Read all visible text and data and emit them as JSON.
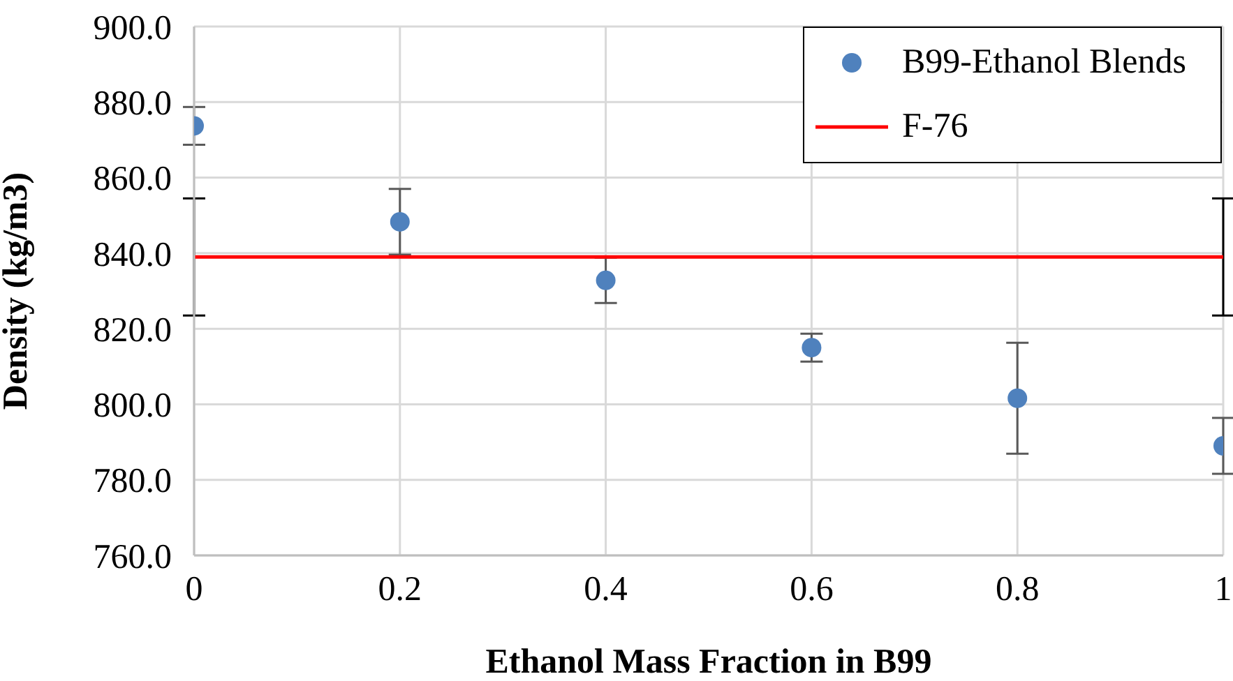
{
  "chart_data": {
    "type": "scatter",
    "xlabel": "Ethanol Mass Fraction in B99",
    "ylabel": "Density (kg/m3)",
    "xlim": [
      0,
      1
    ],
    "xticks": [
      0,
      0.2,
      0.4,
      0.6,
      0.8,
      1
    ],
    "ylim": [
      760,
      900
    ],
    "yticks": [
      {
        "value": 760,
        "label": "760.0"
      },
      {
        "value": 780,
        "label": "780.0"
      },
      {
        "value": 800,
        "label": "800.0"
      },
      {
        "value": 820,
        "label": "820.0"
      },
      {
        "value": 840,
        "label": "840.0"
      },
      {
        "value": 860,
        "label": "860.0"
      },
      {
        "value": 880,
        "label": "880.0"
      },
      {
        "value": 900,
        "label": "900.0"
      }
    ],
    "grid": true,
    "legend": "top right",
    "series": [
      {
        "name": "B99-Ethanol Blends",
        "marker": "circle",
        "color": "#4f81bd",
        "x": [
          0,
          0.2,
          0.4,
          0.6,
          0.8,
          1
        ],
        "values": [
          873.7,
          848.3,
          832.8,
          815.0,
          801.6,
          789.0
        ],
        "errors": [
          5,
          8.7,
          6,
          3.7,
          14.7,
          7.4
        ]
      },
      {
        "name": "F-76",
        "type": "line",
        "marker": "none",
        "color": "#ff0000",
        "line_style": "solid",
        "x": [
          0,
          1
        ],
        "values": [
          839.0,
          839.0
        ],
        "errors": [
          15.5,
          15.5
        ]
      }
    ]
  }
}
